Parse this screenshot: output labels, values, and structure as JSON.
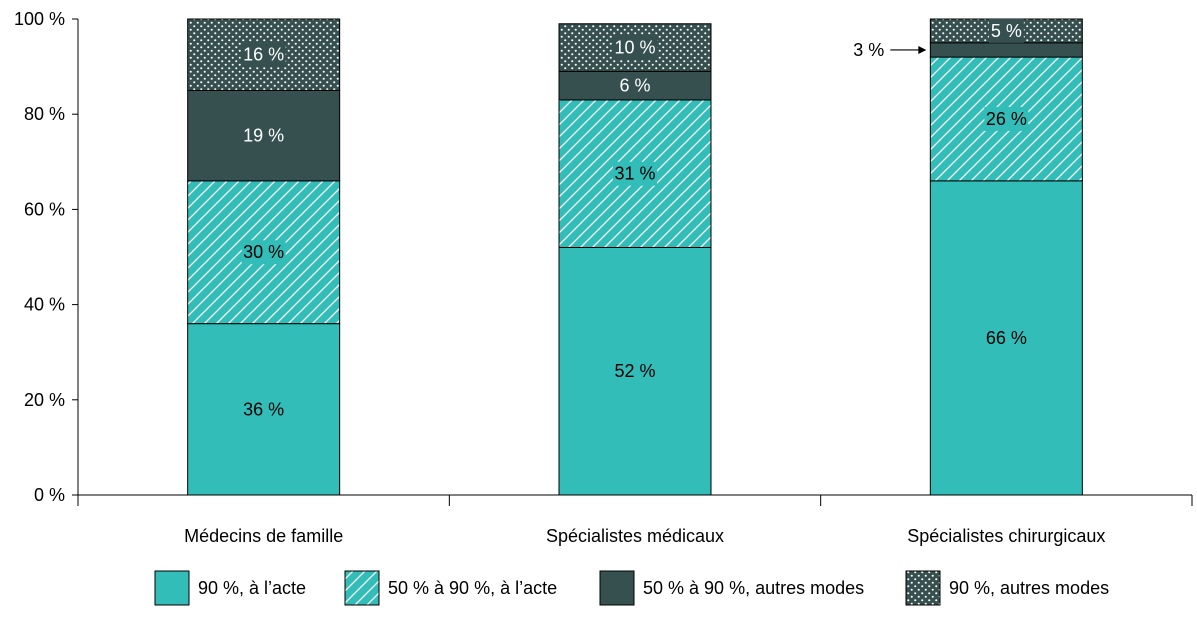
{
  "chart_data": {
    "type": "bar",
    "stacked": true,
    "categories": [
      "Médecins de famille",
      "Spécialistes médicaux",
      "Spécialistes chirurgicaux"
    ],
    "series": [
      {
        "name": "90 %, à l’acte",
        "values": [
          36,
          52,
          66
        ],
        "labels": [
          "36 %",
          "52 %",
          "66 %"
        ],
        "color": "#33bdb8",
        "pattern": "solid"
      },
      {
        "name": "50 % à 90 %, à l’acte",
        "values": [
          30,
          31,
          26
        ],
        "labels": [
          "30 %",
          "31 %",
          "26 %"
        ],
        "color": "#33bdb8",
        "pattern": "diagonal-hatch"
      },
      {
        "name": "50 % à 90 %, autres modes",
        "values": [
          19,
          6,
          3
        ],
        "labels": [
          "19 %",
          "6 %",
          "3 %"
        ],
        "color": "#36504f",
        "pattern": "solid"
      },
      {
        "name": "90 %, autres modes",
        "values": [
          16,
          10,
          5
        ],
        "labels": [
          "16 %",
          "10 %",
          "5 %"
        ],
        "color": "#36504f",
        "pattern": "dots"
      }
    ],
    "ylim": [
      0,
      100
    ],
    "yticks": [
      "0 %",
      "20 %",
      "40 %",
      "60 %",
      "80 %",
      "100 %"
    ],
    "xlabel": "",
    "ylabel": "",
    "title": "",
    "grid": false,
    "legend_position": "bottom",
    "annotations": [
      {
        "category_index": 2,
        "series_index": 2,
        "text": "3 %",
        "style": "arrow-left"
      }
    ]
  }
}
